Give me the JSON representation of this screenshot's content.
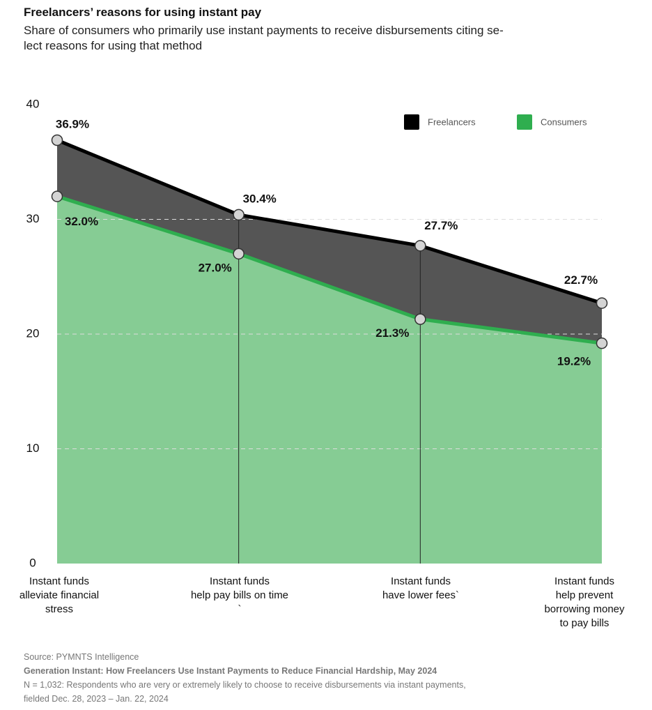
{
  "chart_data": {
    "type": "area",
    "title": "Freelancers’ reasons for using instant pay",
    "subtitle": "Share of consumers who primarily use instant payments to receive disbursements citing se-\nlect reasons for using that method",
    "categories": [
      "Instant funds\nalleviate financial\nstress",
      "Instant funds\nhelp pay bills on time\n`",
      "Instant funds\nhave lower fees`",
      "Instant funds\nhelp prevent\nborrowing money\nto pay bills"
    ],
    "series": [
      {
        "name": "Freelancers",
        "color": "#000000",
        "fill": "#555555",
        "values": [
          36.9,
          30.4,
          27.7,
          22.7
        ],
        "value_labels": [
          "36.9%",
          "30.4%",
          "27.7%",
          "22.7%"
        ]
      },
      {
        "name": "Consumers",
        "color": "#2fae4f",
        "fill": "#86cc94",
        "values": [
          32.0,
          27.0,
          21.3,
          19.2
        ],
        "value_labels": [
          "32.0%",
          "27.0%",
          "21.3%",
          "19.2%"
        ]
      }
    ],
    "ylim": [
      0,
      40
    ],
    "yticks": [
      0,
      10,
      20,
      30,
      40
    ],
    "grid": true,
    "legend": "top-right",
    "source": "Source: PYMNTS Intelligence",
    "report": "Generation Instant: How Freelancers Use Instant Payments to Reduce Financial Hardship, May 2024",
    "note": "N = 1,032: Respondents who are very or extremely likely to choose to receive disbursements via instant payments,\nfielded Dec. 28, 2023 – Jan. 22, 2024"
  }
}
